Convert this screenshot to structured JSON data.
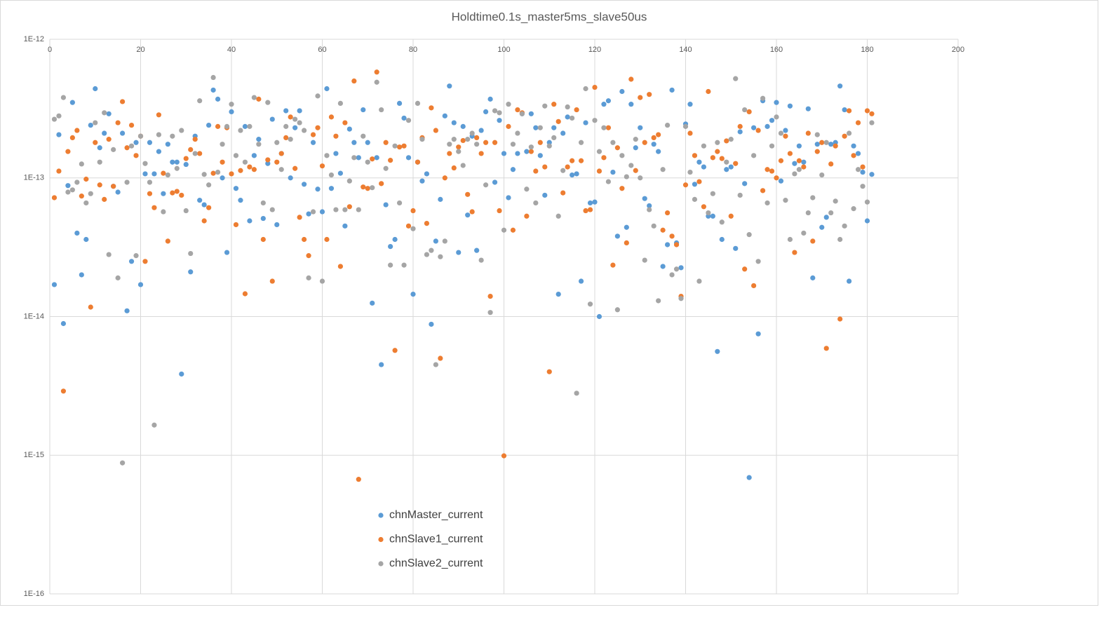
{
  "chart_data": {
    "type": "scatter",
    "title": "Holdtime0.1s_master5ms_slave50us",
    "y_scale": "log",
    "grid": true,
    "legend": "lower-center",
    "xlim": [
      0,
      200
    ],
    "xticks": [
      0,
      20,
      40,
      60,
      80,
      100,
      120,
      140,
      160,
      180,
      200
    ],
    "ylim": [
      1e-16,
      1e-12
    ],
    "yticks": [
      {
        "value": 1e-16,
        "label": "1E-16"
      },
      {
        "value": 1e-15,
        "label": "1E-15"
      },
      {
        "value": 1e-14,
        "label": "1E-14"
      },
      {
        "value": 1e-13,
        "label": "1E-13"
      },
      {
        "value": 1e-12,
        "label": "1E-12"
      }
    ],
    "x": [
      1,
      2,
      3,
      4,
      5,
      6,
      7,
      8,
      9,
      10,
      11,
      12,
      13,
      14,
      15,
      16,
      17,
      18,
      19,
      20,
      21,
      22,
      23,
      24,
      25,
      26,
      27,
      28,
      29,
      30,
      31,
      32,
      33,
      34,
      35,
      36,
      37,
      38,
      39,
      40,
      41,
      42,
      43,
      44,
      45,
      46,
      47,
      48,
      49,
      50,
      51,
      52,
      53,
      54,
      55,
      56,
      57,
      58,
      59,
      60,
      61,
      62,
      63,
      64,
      65,
      66,
      67,
      68,
      69,
      70,
      71,
      72,
      73,
      74,
      75,
      76,
      77,
      78,
      79,
      80,
      81,
      82,
      83,
      84,
      85,
      86,
      87,
      88,
      89,
      90,
      91,
      92,
      93,
      94,
      95,
      96,
      97,
      98,
      99,
      100,
      101,
      102,
      103,
      104,
      105,
      106,
      107,
      108,
      109,
      110,
      111,
      112,
      113,
      114,
      115,
      116,
      117,
      118,
      119,
      120,
      121,
      122,
      123,
      124,
      125,
      126,
      127,
      128,
      129,
      130,
      131,
      132,
      133,
      134,
      135,
      136,
      137,
      138,
      139,
      140,
      141,
      142,
      143,
      144,
      145,
      146,
      147,
      148,
      149,
      150,
      151,
      152,
      153,
      154,
      155,
      156,
      157,
      158,
      159,
      160,
      161,
      162,
      163,
      164,
      165,
      166,
      167,
      168,
      169,
      170,
      171,
      172,
      173,
      174,
      175,
      176,
      177,
      178,
      179,
      180,
      181
    ],
    "series": [
      {
        "name": "chnMaster_current",
        "color": "#5b9bd5",
        "values": [
          1.7e-14,
          2.05e-13,
          8.9e-15,
          8.8e-14,
          3.5e-13,
          4e-14,
          2e-14,
          3.6e-14,
          2.4e-13,
          4.4e-13,
          1.65e-13,
          2.1e-13,
          2.9e-13,
          8.7e-14,
          7.9e-14,
          2.1e-13,
          1.1e-14,
          2.5e-14,
          1.8e-13,
          1.7e-14,
          1.07e-13,
          1.8e-13,
          1.07e-13,
          1.55e-13,
          7.7e-14,
          1.75e-13,
          1.3e-13,
          1.3e-13,
          3.85e-15,
          1.25e-13,
          2.1e-14,
          2e-13,
          6.9e-14,
          6.4e-14,
          2.4e-13,
          4.3e-13,
          3.7e-13,
          1e-13,
          2.9e-14,
          3e-13,
          8.4e-14,
          6.9e-14,
          2.35e-13,
          4.9e-14,
          1.45e-13,
          1.9e-13,
          5.1e-14,
          1.27e-13,
          2.65e-13,
          4.6e-14,
          1.5e-13,
          3.05e-13,
          1e-13,
          2.3e-13,
          3.05e-13,
          9e-14,
          5.5e-14,
          1.8e-13,
          8.3e-14,
          5.7e-14,
          4.4e-13,
          8.4e-14,
          1.5e-13,
          1.08e-13,
          4.5e-14,
          2.25e-13,
          1.8e-13,
          1.4e-13,
          3.1e-13,
          1.8e-13,
          1.25e-14,
          1.4e-13,
          4.5e-15,
          6.4e-14,
          3.2e-14,
          3.6e-14,
          3.45e-13,
          2.7e-13,
          1.4e-13,
          1.45e-14,
          1.3e-13,
          9.5e-14,
          1.07e-13,
          8.8e-15,
          3.5e-14,
          7e-14,
          2.8e-13,
          4.6e-13,
          2.5e-13,
          2.9e-14,
          2.35e-13,
          5.4e-14,
          2e-13,
          3e-14,
          2.2e-13,
          3e-13,
          3.7e-13,
          9.3e-14,
          2.6e-13,
          1.5e-13,
          7.2e-14,
          1.15e-13,
          1.5e-13,
          2.9e-13,
          1.55e-13,
          2.9e-13,
          2.3e-13,
          1.45e-13,
          7.5e-14,
          1.8e-13,
          2.3e-13,
          1.45e-14,
          2.1e-13,
          2.75e-13,
          1.05e-13,
          1.07e-13,
          1.8e-14,
          2.5e-13,
          6.6e-14,
          6.7e-14,
          1e-14,
          3.4e-13,
          3.6e-13,
          1.1e-13,
          3.8e-14,
          4.2e-13,
          4.4e-14,
          3.4e-13,
          1.65e-13,
          2.3e-13,
          7.1e-14,
          6.3e-14,
          1.75e-13,
          1.55e-13,
          2.3e-14,
          3.3e-14,
          4.3e-13,
          3.4e-14,
          2.25e-14,
          2.45e-13,
          3.4e-13,
          9e-14,
          1.3e-13,
          1.2e-13,
          5.3e-14,
          5.3e-14,
          5.6e-15,
          3.6e-14,
          1.15e-13,
          1.2e-13,
          3.1e-14,
          2.15e-13,
          9.1e-14,
          6.9e-16,
          2.3e-13,
          7.5e-15,
          3.6e-13,
          2.35e-13,
          2.6e-13,
          3.5e-13,
          9.5e-14,
          2.2e-13,
          3.3e-13,
          1.27e-13,
          1.7e-13,
          1.3e-13,
          3.15e-13,
          1.9e-14,
          1.75e-13,
          4.4e-14,
          5.2e-14,
          1.75e-13,
          1.8e-13,
          4.6e-13,
          3.1e-13,
          1.8e-14,
          1.7e-13,
          1.5e-13,
          1.1e-13,
          4.9e-14,
          1.06e-13
        ]
      },
      {
        "name": "chnSlave1_current",
        "color": "#ed7d31",
        "values": [
          7.2e-14,
          1.12e-13,
          2.9e-15,
          1.55e-13,
          1.95e-13,
          2.2e-13,
          7.4e-14,
          9.8e-14,
          1.17e-14,
          1.8e-13,
          8.9e-14,
          7e-14,
          1.9e-13,
          8.7e-14,
          2.5e-13,
          3.55e-13,
          1.65e-13,
          2.4e-13,
          1.45e-13,
          2e-13,
          2.5e-14,
          7.7e-14,
          6.1e-14,
          2.85e-13,
          1.08e-13,
          3.5e-14,
          7.8e-14,
          8e-14,
          7.5e-14,
          1.38e-13,
          1.6e-13,
          1.9e-13,
          1.5e-13,
          4.9e-14,
          6.1e-14,
          1.08e-13,
          2.35e-13,
          1.3e-13,
          2.3e-13,
          1.07e-13,
          4.6e-14,
          1.13e-13,
          1.46e-14,
          1.2e-13,
          1.15e-13,
          3.7e-13,
          3.6e-14,
          1.35e-13,
          1.8e-14,
          1.3e-13,
          1.5e-13,
          1.95e-13,
          2.75e-13,
          1.17e-13,
          5.2e-14,
          3.6e-14,
          2.75e-14,
          2.05e-13,
          2.3e-13,
          1.22e-13,
          3.6e-14,
          2.75e-13,
          2e-13,
          2.3e-14,
          2.5e-13,
          6.2e-14,
          5e-13,
          6.7e-16,
          8.6e-14,
          8.4e-14,
          1.37e-13,
          5.8e-13,
          9.1e-14,
          1.8e-13,
          1.34e-13,
          5.7e-15,
          1.67e-13,
          1.7e-13,
          4.5e-14,
          5.8e-14,
          1.3e-13,
          1.95e-13,
          4.7e-14,
          3.2e-13,
          2.2e-13,
          5e-15,
          1e-13,
          1.5e-13,
          1.18e-13,
          1.67e-13,
          1.86e-13,
          7.6e-14,
          5.7e-14,
          1.95e-13,
          1.5e-13,
          1.8e-13,
          1.4e-14,
          1.8e-13,
          5.8e-14,
          9.9e-16,
          2.35e-13,
          4.2e-14,
          3.1e-13,
          2.95e-13,
          5.3e-14,
          1.55e-13,
          1.12e-13,
          1.8e-13,
          1.2e-13,
          4e-15,
          3.4e-13,
          2.55e-13,
          7.8e-14,
          1.2e-13,
          1.33e-13,
          3.1e-13,
          1.33e-13,
          5.8e-14,
          5.9e-14,
          4.5e-13,
          1.12e-13,
          1.4e-13,
          2.3e-13,
          2.35e-14,
          1.65e-13,
          8.4e-14,
          3.4e-14,
          5.15e-13,
          1.13e-13,
          3.8e-13,
          1.8e-13,
          4e-13,
          1.95e-13,
          2.05e-13,
          4.2e-14,
          5.6e-14,
          3.8e-14,
          3.3e-14,
          1.4e-14,
          8.9e-14,
          2.1e-13,
          1.45e-13,
          9.4e-14,
          6.2e-14,
          4.2e-13,
          1.4e-13,
          1.55e-13,
          1.38e-13,
          1.85e-13,
          5.3e-14,
          1.27e-13,
          2.35e-13,
          2.2e-14,
          3e-13,
          1.67e-14,
          2.2e-13,
          8.1e-14,
          1.15e-13,
          1.12e-13,
          1e-13,
          1.33e-13,
          2e-13,
          1.5e-13,
          2.9e-14,
          1.33e-13,
          1.2e-13,
          2.1e-13,
          3.5e-14,
          1.55e-13,
          1.8e-13,
          5.9e-15,
          1.26e-13,
          1.7e-13,
          9.6e-15,
          2e-13,
          3.05e-13,
          1.45e-13,
          2.5e-13,
          1.2e-13,
          3.05e-13,
          2.9e-13
        ]
      },
      {
        "name": "chnSlave2_current",
        "color": "#a5a5a5",
        "values": [
          2.65e-13,
          2.8e-13,
          3.8e-13,
          7.9e-14,
          8.2e-14,
          9.3e-14,
          1.26e-13,
          6.6e-14,
          7.7e-14,
          2.5e-13,
          1.3e-13,
          2.95e-13,
          2.8e-14,
          1.6e-13,
          1.9e-14,
          8.8e-16,
          9.3e-14,
          1.7e-13,
          2.75e-14,
          2e-13,
          1.27e-13,
          9.3e-14,
          1.65e-15,
          2.05e-13,
          5.7e-14,
          1.05e-13,
          2e-13,
          1.17e-13,
          2.2e-13,
          5.8e-14,
          2.85e-14,
          1.5e-13,
          3.6e-13,
          1.06e-13,
          8.9e-14,
          5.3e-13,
          1.1e-13,
          1.75e-13,
          2.35e-13,
          3.4e-13,
          1.45e-13,
          2.2e-13,
          1.3e-13,
          2.35e-13,
          3.8e-13,
          1.75e-13,
          6.6e-14,
          3.5e-13,
          5.9e-14,
          1.8e-13,
          1.15e-13,
          2.35e-13,
          1.9e-13,
          2.65e-13,
          2.5e-13,
          2.2e-13,
          1.9e-14,
          5.7e-14,
          3.9e-13,
          1.8e-14,
          1.45e-13,
          1.05e-13,
          5.9e-14,
          3.45e-13,
          5.9e-14,
          9.5e-14,
          1.4e-13,
          5.9e-14,
          2e-13,
          1.3e-13,
          8.5e-14,
          4.9e-13,
          3.1e-13,
          1.17e-13,
          2.35e-14,
          1.7e-13,
          6.6e-14,
          2.35e-14,
          2.6e-13,
          4.3e-14,
          3.45e-13,
          1.9e-13,
          2.8e-14,
          3e-14,
          4.5e-15,
          2.7e-14,
          3.5e-14,
          1.75e-13,
          1.9e-13,
          1.55e-13,
          1.23e-13,
          1.9e-13,
          2.1e-13,
          1.75e-13,
          2.55e-14,
          8.9e-14,
          1.07e-14,
          3.05e-13,
          2.95e-13,
          4.2e-14,
          3.4e-13,
          1.75e-13,
          2.1e-13,
          2.9e-13,
          8.3e-14,
          1.67e-13,
          6.6e-14,
          2.3e-13,
          3.3e-13,
          1.7e-13,
          1.95e-13,
          5.3e-14,
          1.13e-13,
          3.25e-13,
          2.7e-13,
          2.8e-15,
          1.8e-13,
          4.4e-13,
          1.23e-14,
          2.6e-13,
          1.55e-13,
          2.3e-13,
          9.4e-14,
          1.8e-13,
          1.12e-14,
          1.45e-13,
          1.02e-13,
          1.23e-13,
          1.9e-13,
          1e-13,
          2.55e-14,
          5.9e-14,
          4.5e-14,
          1.3e-14,
          1.15e-13,
          2.4e-13,
          2e-14,
          2.2e-14,
          1.35e-14,
          2.35e-13,
          1.1e-13,
          7e-14,
          1.8e-14,
          1.7e-13,
          5.6e-14,
          7.7e-14,
          1.8e-13,
          4.8e-14,
          1.3e-13,
          1.9e-13,
          5.2e-13,
          7.5e-14,
          3.1e-13,
          3.9e-14,
          1.45e-13,
          2.5e-14,
          3.75e-13,
          6.6e-14,
          1.7e-13,
          2.75e-13,
          2.1e-13,
          6.9e-14,
          3.6e-14,
          1.07e-13,
          1.15e-13,
          4e-14,
          5.6e-14,
          7.2e-14,
          2.05e-13,
          1.05e-13,
          1.8e-13,
          5.6e-14,
          6.8e-14,
          3.6e-14,
          4.5e-14,
          2.1e-13,
          6e-14,
          1.15e-13,
          8.7e-14,
          6.7e-14,
          2.5e-13
        ]
      }
    ]
  }
}
